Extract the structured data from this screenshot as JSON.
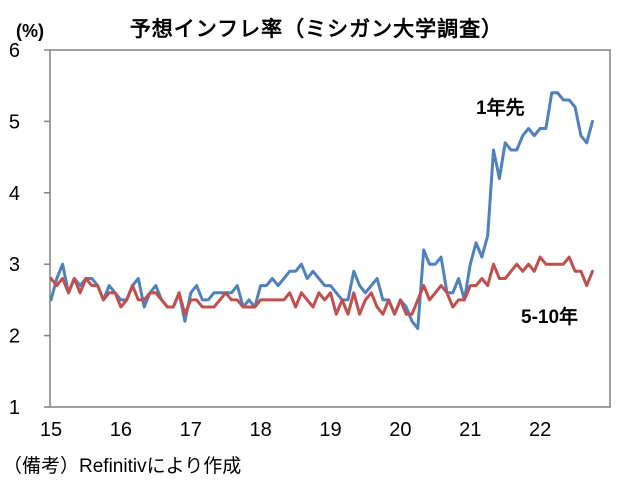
{
  "title": "予想インフレ率（ミシガン大学調査）",
  "unit_label": "(%)",
  "note": "（備考）Refinitivにより作成",
  "colors": {
    "line_1year": "#4F81BD",
    "line_5to10year": "#C0504D",
    "axis": "#808080",
    "text": "#000000",
    "background": "#FFFFFF"
  },
  "chart_data": {
    "type": "line",
    "title": "予想インフレ率（ミシガン大学調査）",
    "y_unit": "(%)",
    "xlabel": "",
    "ylabel": "",
    "ylim": [
      1,
      6
    ],
    "y_ticks": [
      6,
      5,
      4,
      3,
      2,
      1
    ],
    "x_tick_labels": [
      "15",
      "16",
      "17",
      "18",
      "19",
      "20",
      "21",
      "22"
    ],
    "x_axis_span_years": [
      2015,
      2023
    ],
    "frequency": "monthly",
    "x_monthly_from": "2015-01",
    "x_monthly_to": "2022-10",
    "grid": false,
    "legend_position": "inline-annotations",
    "series": [
      {
        "name": "1年先",
        "color": "#4F81BD",
        "values": [
          2.5,
          2.8,
          3.0,
          2.6,
          2.8,
          2.7,
          2.8,
          2.8,
          2.7,
          2.5,
          2.7,
          2.6,
          2.5,
          2.5,
          2.7,
          2.8,
          2.4,
          2.6,
          2.7,
          2.5,
          2.4,
          2.4,
          2.6,
          2.2,
          2.6,
          2.7,
          2.5,
          2.5,
          2.6,
          2.6,
          2.6,
          2.6,
          2.7,
          2.4,
          2.5,
          2.4,
          2.7,
          2.7,
          2.8,
          2.7,
          2.8,
          2.9,
          2.9,
          3.0,
          2.8,
          2.9,
          2.8,
          2.7,
          2.7,
          2.6,
          2.5,
          2.5,
          2.9,
          2.7,
          2.6,
          2.7,
          2.8,
          2.5,
          2.5,
          2.3,
          2.5,
          2.4,
          2.2,
          2.1,
          3.2,
          3.0,
          3.0,
          3.1,
          2.6,
          2.6,
          2.8,
          2.5,
          3.0,
          3.3,
          3.1,
          3.4,
          4.6,
          4.2,
          4.7,
          4.6,
          4.6,
          4.8,
          4.9,
          4.8,
          4.9,
          4.9,
          5.4,
          5.4,
          5.3,
          5.3,
          5.2,
          4.8,
          4.7,
          5.0
        ]
      },
      {
        "name": "5-10年",
        "color": "#C0504D",
        "values": [
          2.8,
          2.7,
          2.8,
          2.6,
          2.8,
          2.6,
          2.8,
          2.7,
          2.7,
          2.5,
          2.6,
          2.6,
          2.4,
          2.5,
          2.7,
          2.5,
          2.5,
          2.6,
          2.6,
          2.5,
          2.4,
          2.4,
          2.6,
          2.3,
          2.5,
          2.5,
          2.4,
          2.4,
          2.4,
          2.5,
          2.6,
          2.5,
          2.5,
          2.4,
          2.4,
          2.4,
          2.5,
          2.5,
          2.5,
          2.5,
          2.5,
          2.6,
          2.4,
          2.6,
          2.5,
          2.4,
          2.6,
          2.5,
          2.6,
          2.3,
          2.5,
          2.3,
          2.6,
          2.3,
          2.5,
          2.6,
          2.4,
          2.3,
          2.5,
          2.3,
          2.5,
          2.3,
          2.3,
          2.5,
          2.7,
          2.5,
          2.6,
          2.7,
          2.6,
          2.4,
          2.5,
          2.5,
          2.7,
          2.7,
          2.8,
          2.7,
          3.0,
          2.8,
          2.8,
          2.9,
          3.0,
          2.9,
          3.0,
          2.9,
          3.1,
          3.0,
          3.0,
          3.0,
          3.0,
          3.1,
          2.9,
          2.9,
          2.7,
          2.9
        ]
      }
    ]
  }
}
